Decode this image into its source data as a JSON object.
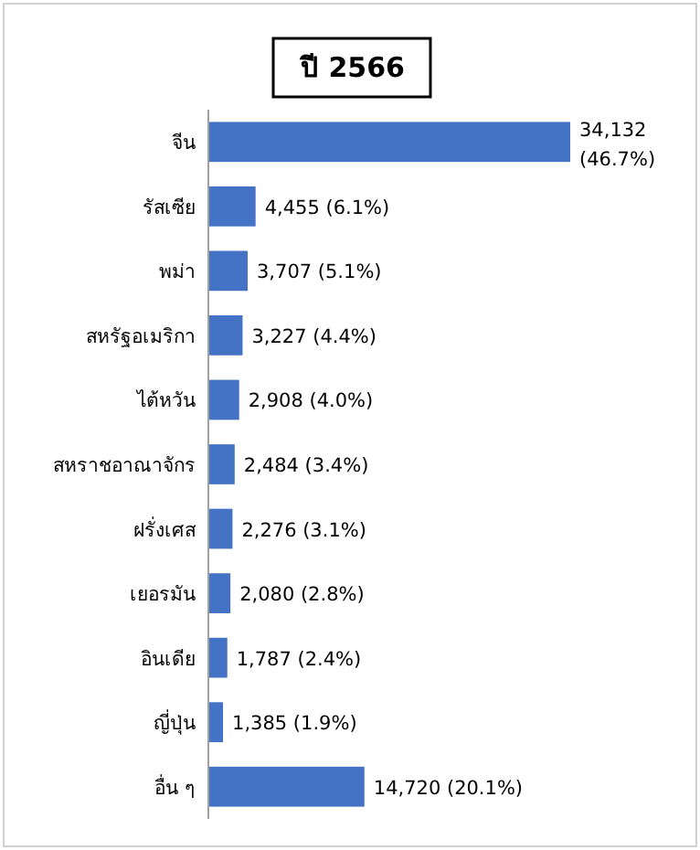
{
  "chart_data": {
    "type": "bar",
    "orientation": "horizontal",
    "title": "ปี 2566",
    "categories": [
      "จีน",
      "รัสเซีย",
      "พม่า",
      "สหรัฐอเมริกา",
      "ไต้หวัน",
      "สหราชอาณาจักร",
      "ฝรั่งเศส",
      "เยอรมัน",
      "อินเดีย",
      "ญี่ปุ่น",
      "อื่น ๆ"
    ],
    "values": [
      34132,
      4455,
      3707,
      3227,
      2908,
      2484,
      2276,
      2080,
      1787,
      1385,
      14720
    ],
    "value_labels": [
      "34,132 (46.7%)",
      "4,455 (6.1%)",
      "3,707 (5.1%)",
      "3,227 (4.4%)",
      "2,908 (4.0%)",
      "2,484 (3.4%)",
      "2,276 (3.1%)",
      "2,080 (2.8%)",
      "1,787 (2.4%)",
      "1,385 (1.9%)",
      "14,720 (20.1%)"
    ],
    "color": "#4472c4"
  }
}
